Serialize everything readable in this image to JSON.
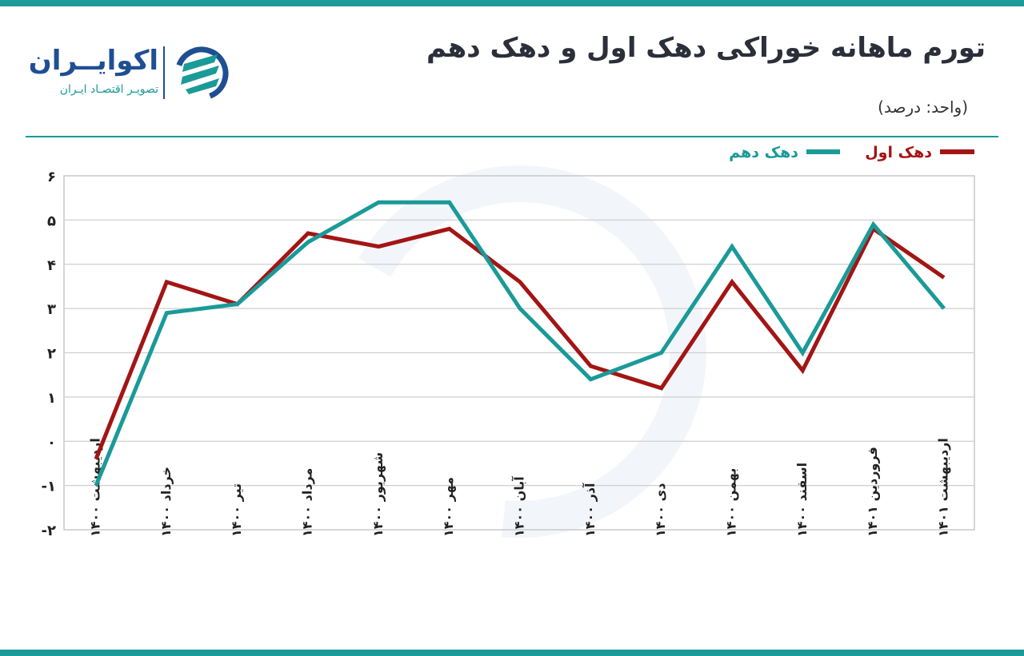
{
  "header": {
    "title": "تورم ماهانه خوراکی دهک اول و دهک دهم",
    "unit": "(واحد: درصد)"
  },
  "brand": {
    "name": "اکوایــران",
    "tagline": "تصویـر اقتصـاد ایـران",
    "logo_icon": "ecoiran-swirl-icon",
    "colors": {
      "teal": "#1a9a98",
      "navy": "#1f4f92"
    }
  },
  "chart_data": {
    "type": "line",
    "categories": [
      "اردیبهشت ۱۴۰۰",
      "خرداد ۱۴۰۰",
      "تیر ۱۴۰۰",
      "مرداد ۱۴۰۰",
      "شهریور ۱۴۰۰",
      "مهر ۱۴۰۰",
      "آبان ۱۴۰۰",
      "آذر ۱۴۰۰",
      "دی ۱۴۰۰",
      "بهمن ۱۴۰۰",
      "اسفند ۱۴۰۰",
      "فروردین ۱۴۰۱",
      "اردیبهشت ۱۴۰۱"
    ],
    "series": [
      {
        "name": "دهک اول",
        "color": "#a31515",
        "values": [
          -0.4,
          3.6,
          3.1,
          4.7,
          4.4,
          4.8,
          3.6,
          1.7,
          1.2,
          3.6,
          1.6,
          4.8,
          3.7
        ]
      },
      {
        "name": "دهک دهم",
        "color": "#1a9a98",
        "values": [
          -1.0,
          2.9,
          3.1,
          4.5,
          5.4,
          5.4,
          3.0,
          1.4,
          2.0,
          4.4,
          2.0,
          4.9,
          3.0
        ]
      }
    ],
    "yticks": [
      "-۲",
      "-۱",
      "۰",
      "۱",
      "۲",
      "۳",
      "۴",
      "۵",
      "۶"
    ],
    "ylim": [
      -2,
      6
    ],
    "grid": true,
    "legend_position": "top-right"
  }
}
